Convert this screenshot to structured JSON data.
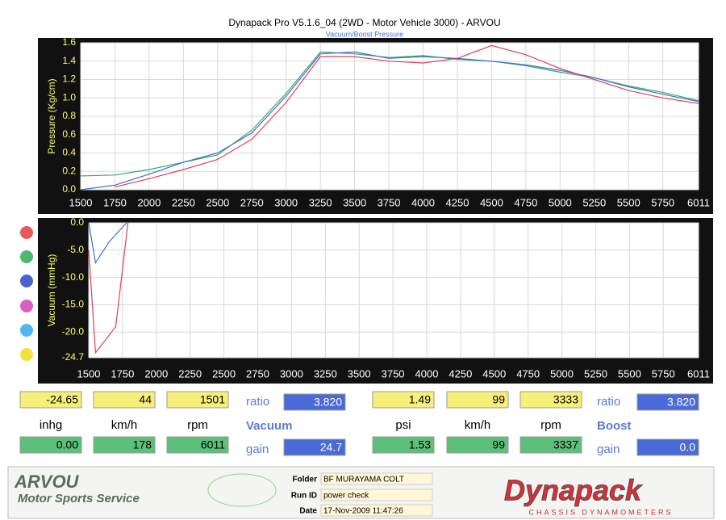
{
  "header": {
    "title": "Dynapack Pro V5.1.6_04 (2WD - Motor Vehicle 3000) - ARVOU",
    "subtitle": "Vacuum/Boost Pressure"
  },
  "chart_data": [
    {
      "type": "line",
      "ylabel": "Pressure (Kg/cm)",
      "x": [
        1500,
        1750,
        2000,
        2250,
        2500,
        2750,
        3000,
        3250,
        3500,
        3750,
        4000,
        4250,
        4500,
        4750,
        5000,
        5250,
        5500,
        5750,
        6011
      ],
      "series": [
        {
          "color": "#3aa86a",
          "values": [
            0.15,
            0.16,
            0.22,
            0.3,
            0.38,
            0.65,
            1.05,
            1.5,
            1.48,
            1.44,
            1.46,
            1.42,
            1.4,
            1.35,
            1.28,
            1.22,
            1.13,
            1.06,
            0.97
          ]
        },
        {
          "color": "#3a6fd0",
          "values": [
            0.0,
            0.05,
            0.17,
            0.3,
            0.4,
            0.62,
            1.02,
            1.48,
            1.5,
            1.43,
            1.45,
            1.43,
            1.4,
            1.36,
            1.3,
            1.22,
            1.12,
            1.04,
            0.96
          ]
        },
        {
          "color": "#e0405a",
          "values": [
            null,
            0.03,
            0.12,
            0.22,
            0.33,
            0.55,
            0.95,
            1.45,
            1.45,
            1.4,
            1.38,
            1.43,
            1.57,
            1.47,
            1.32,
            1.2,
            1.08,
            1.0,
            0.94
          ]
        }
      ],
      "xlim": [
        1500,
        6011
      ],
      "xticks": [
        1500,
        1750,
        2000,
        2250,
        2500,
        2750,
        3000,
        3250,
        3500,
        3750,
        4000,
        4250,
        4500,
        4750,
        5000,
        5250,
        5500,
        5750,
        6011
      ],
      "ylim": [
        0,
        1.6
      ],
      "yticks": [
        {
          "value": 0,
          "label": "0.0"
        },
        0.2,
        0.4,
        0.6,
        0.8,
        {
          "value": 1,
          "label": "1.0"
        },
        1.2,
        1.4,
        1.6
      ],
      "grid": true
    },
    {
      "type": "line",
      "ylabel": "Vacuum (mmHg)",
      "series": [
        {
          "color": "#3a6fd0",
          "x": [
            1500,
            1550,
            1650,
            1780
          ],
          "values": [
            0,
            -7.3,
            -3.5,
            0
          ]
        },
        {
          "color": "#e0405a",
          "x": [
            1500,
            1550,
            1700,
            1790
          ],
          "values": [
            -5,
            -23.8,
            -19,
            0
          ]
        }
      ],
      "xlim": [
        1500,
        6011
      ],
      "xticks": [
        1500,
        1750,
        2000,
        2250,
        2500,
        2750,
        3000,
        3250,
        3500,
        3750,
        4000,
        4250,
        4500,
        4750,
        5000,
        5250,
        5500,
        5750,
        6011
      ],
      "ylim": [
        -24.7,
        0
      ],
      "yticks": [
        {
          "value": 0,
          "label": "0.0"
        },
        {
          "value": -5,
          "label": "-5.0"
        },
        {
          "value": -10,
          "label": "-10.0"
        },
        {
          "value": -15,
          "label": "-15.0"
        },
        {
          "value": -20,
          "label": "-20.0"
        },
        -24.7
      ],
      "grid": true
    }
  ],
  "readouts": {
    "vacuum": {
      "top": [
        "-24.65",
        "44",
        "1501"
      ],
      "units": [
        "inhg",
        "km/h",
        "rpm"
      ],
      "bottom": [
        "0.00",
        "178",
        "6011"
      ],
      "ratio_label": "ratio",
      "ratio": "3.820",
      "section": "Vacuum",
      "gain_label": "gain",
      "gain": "24.7"
    },
    "boost": {
      "top": [
        "1.49",
        "99",
        "3333"
      ],
      "units": [
        "psi",
        "km/h",
        "rpm"
      ],
      "bottom": [
        "1.53",
        "99",
        "3337"
      ],
      "ratio_label": "ratio",
      "ratio": "3.820",
      "section": "Boost",
      "gain_label": "gain",
      "gain": "0.0"
    }
  },
  "footer": {
    "brand": "ARVOU",
    "brand_sub": "Motor Sports Service",
    "folder_label": "Folder",
    "folder": "BF MURAYAMA COLT",
    "run_label": "Run ID",
    "run": "power check",
    "date_label": "Date",
    "date": "17-Nov-2009  11:47:26",
    "logo": "Dynapack",
    "logo_sub": "CHASSIS DYNAMOMETERS"
  }
}
